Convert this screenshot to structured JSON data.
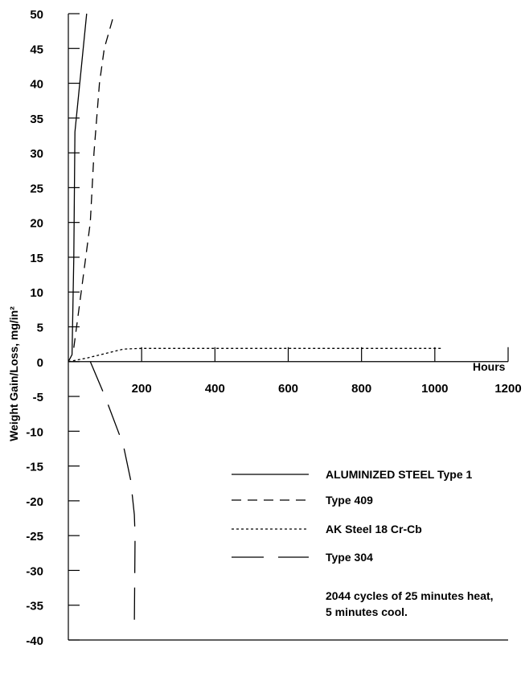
{
  "chart_data": {
    "type": "line",
    "xlabel": "Hours",
    "ylabel": "Weight Gain/Loss, mg/in²",
    "xlim": [
      0,
      1200
    ],
    "ylim": [
      -40,
      50
    ],
    "x_ticks": [
      200,
      400,
      600,
      800,
      1000,
      1200
    ],
    "y_ticks": [
      50,
      45,
      40,
      35,
      30,
      25,
      20,
      15,
      10,
      5,
      0,
      -5,
      -10,
      -15,
      -20,
      -25,
      -30,
      -35,
      -40
    ],
    "series": [
      {
        "name": "ALUMINIZED STEEL Type 1",
        "style": "solid",
        "points": [
          [
            0,
            0
          ],
          [
            10,
            1
          ],
          [
            15,
            15
          ],
          [
            18,
            33
          ],
          [
            50,
            50
          ]
        ]
      },
      {
        "name": "Type 409",
        "style": "dashed",
        "points": [
          [
            15,
            2
          ],
          [
            35,
            10
          ],
          [
            60,
            20
          ],
          [
            70,
            30
          ],
          [
            85,
            40
          ],
          [
            98,
            45
          ],
          [
            125,
            50
          ]
        ]
      },
      {
        "name": "AK Steel 18 Cr-Cb",
        "style": "dotted",
        "points": [
          [
            0,
            0
          ],
          [
            50,
            0.5
          ],
          [
            150,
            1.8
          ],
          [
            200,
            1.9
          ],
          [
            400,
            1.9
          ],
          [
            600,
            1.9
          ],
          [
            800,
            1.9
          ],
          [
            1000,
            1.9
          ],
          [
            1020,
            1.9
          ]
        ]
      },
      {
        "name": "Type 304",
        "style": "long-dash",
        "points": [
          [
            60,
            0
          ],
          [
            100,
            -5
          ],
          [
            150,
            -12
          ],
          [
            170,
            -17
          ],
          [
            180,
            -22
          ],
          [
            182,
            -25
          ],
          [
            180,
            -38
          ]
        ]
      }
    ],
    "annotation": "2044 cycles of 25 minutes heat,\n5 minutes cool.",
    "grid": false,
    "legend_position": "lower-right"
  }
}
